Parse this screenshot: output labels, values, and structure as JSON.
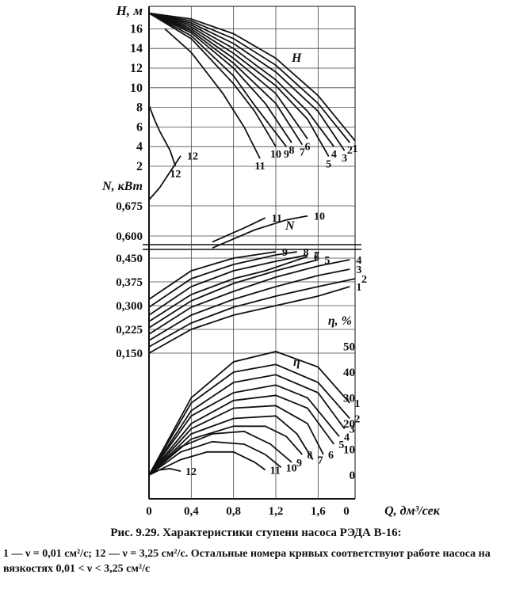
{
  "caption": {
    "title": "Рис. 9.29. Характеристики ступени насоса РЭДА В-16:",
    "note": "1 — ν = 0,01 см²/с; 12 — ν = 3,25 см²/с. Остальные номера кривых соответствуют работе насоса на вязкостях 0,01 < ν < 3,25 см²/с"
  },
  "chart_data": {
    "type": "line",
    "x": {
      "label": "Q, дм³/сек",
      "ticks": [
        "0",
        "0,4",
        "0,8",
        "1,2",
        "1,6"
      ],
      "values": [
        0,
        0.4,
        0.8,
        1.2,
        1.6
      ],
      "range": [
        0,
        1.95
      ],
      "zero_right": "0"
    },
    "head": {
      "axis_label": "H, м",
      "ticks": [
        2,
        4,
        6,
        8,
        10,
        12,
        14,
        16
      ],
      "range": [
        0,
        18
      ],
      "label": "H",
      "series": [
        {
          "name": "1",
          "x": [
            0,
            0.4,
            0.8,
            1.2,
            1.6,
            1.95
          ],
          "y": [
            17.6,
            17.0,
            15.5,
            13.0,
            9.2,
            4.6
          ]
        },
        {
          "name": "2",
          "x": [
            0,
            0.4,
            0.8,
            1.2,
            1.6,
            1.9
          ],
          "y": [
            17.6,
            16.8,
            15.0,
            12.3,
            8.4,
            4.4
          ]
        },
        {
          "name": "3",
          "x": [
            0,
            0.4,
            0.8,
            1.2,
            1.6,
            1.85
          ],
          "y": [
            17.6,
            16.6,
            14.5,
            11.6,
            7.6,
            3.6
          ]
        },
        {
          "name": "4",
          "x": [
            0,
            0.4,
            0.8,
            1.2,
            1.5,
            1.75
          ],
          "y": [
            17.6,
            16.4,
            14.0,
            10.8,
            7.6,
            4.0
          ]
        },
        {
          "name": "5",
          "x": [
            0,
            0.4,
            0.8,
            1.2,
            1.5,
            1.7
          ],
          "y": [
            17.6,
            16.2,
            13.5,
            10.2,
            6.8,
            3.0
          ]
        },
        {
          "name": "6",
          "x": [
            0,
            0.4,
            0.8,
            1.2,
            1.5
          ],
          "y": [
            17.6,
            16.0,
            13.0,
            9.4,
            4.8
          ]
        },
        {
          "name": "7",
          "x": [
            0,
            0.4,
            0.8,
            1.2,
            1.45
          ],
          "y": [
            17.6,
            15.8,
            12.5,
            8.4,
            4.2
          ]
        },
        {
          "name": "8",
          "x": [
            0,
            0.4,
            0.8,
            1.1,
            1.35
          ],
          "y": [
            17.6,
            15.6,
            12.0,
            8.4,
            4.4
          ]
        },
        {
          "name": "9",
          "x": [
            0,
            0.4,
            0.8,
            1.0,
            1.3
          ],
          "y": [
            17.6,
            15.3,
            11.2,
            8.2,
            4.0
          ]
        },
        {
          "name": "10",
          "x": [
            0,
            0.4,
            0.8,
            1.0,
            1.2
          ],
          "y": [
            17.6,
            15.0,
            10.4,
            7.6,
            4.0
          ]
        },
        {
          "name": "11",
          "x": [
            0.15,
            0.4,
            0.7,
            0.9,
            1.05
          ],
          "y": [
            16.0,
            13.6,
            9.4,
            6.0,
            2.8
          ]
        },
        {
          "name": "12",
          "x": [
            0,
            0.05,
            0.1,
            0.15,
            0.2,
            0.25
          ],
          "y": [
            8.2,
            6.8,
            5.6,
            4.6,
            3.6,
            2.0
          ]
        }
      ]
    },
    "power": {
      "axis_label": "N, кВт",
      "upper_ticks": [
        "0,675",
        "0,600"
      ],
      "upper_values": [
        0.675,
        0.6
      ],
      "lower_ticks": [
        "0,450",
        "0,375",
        "0,300",
        "0,225",
        "0,150"
      ],
      "lower_values": [
        0.45,
        0.375,
        0.3,
        0.225,
        0.15
      ],
      "label": "N",
      "series": [
        {
          "name": "1",
          "x": [
            0,
            0.4,
            0.8,
            1.2,
            1.6,
            1.9
          ],
          "y": [
            0.15,
            0.225,
            0.27,
            0.3,
            0.33,
            0.36
          ]
        },
        {
          "name": "2",
          "x": [
            0,
            0.4,
            0.8,
            1.2,
            1.6,
            1.95
          ],
          "y": [
            0.17,
            0.245,
            0.295,
            0.33,
            0.36,
            0.385
          ]
        },
        {
          "name": "3",
          "x": [
            0,
            0.4,
            0.8,
            1.2,
            1.6,
            1.9
          ],
          "y": [
            0.19,
            0.27,
            0.32,
            0.36,
            0.395,
            0.415
          ]
        },
        {
          "name": "4",
          "x": [
            0,
            0.4,
            0.8,
            1.2,
            1.6,
            1.9
          ],
          "y": [
            0.21,
            0.295,
            0.345,
            0.39,
            0.425,
            0.445
          ]
        },
        {
          "name": "5",
          "x": [
            0,
            0.4,
            0.8,
            1.2,
            1.6
          ],
          "y": [
            0.23,
            0.315,
            0.37,
            0.41,
            0.445
          ]
        },
        {
          "name": "6",
          "x": [
            0,
            0.4,
            0.8,
            1.1,
            1.5
          ],
          "y": [
            0.25,
            0.335,
            0.385,
            0.41,
            0.455
          ]
        },
        {
          "name": "7",
          "x": [
            0,
            0.4,
            0.8,
            1.2,
            1.5
          ],
          "y": [
            0.27,
            0.36,
            0.41,
            0.44,
            0.46
          ]
        },
        {
          "name": "8",
          "x": [
            0,
            0.4,
            0.8,
            1.2,
            1.4
          ],
          "y": [
            0.295,
            0.385,
            0.43,
            0.46,
            0.47
          ]
        },
        {
          "name": "9",
          "x": [
            0,
            0.4,
            0.8,
            1.2
          ],
          "y": [
            0.32,
            0.41,
            0.45,
            0.47
          ]
        },
        {
          "name": "10",
          "x": [
            0.6,
            1.0,
            1.3,
            1.5
          ],
          "y": [
            0.57,
            0.615,
            0.64,
            0.65
          ]
        },
        {
          "name": "11",
          "x": [
            0.6,
            0.9,
            1.1
          ],
          "y": [
            0.585,
            0.62,
            0.645
          ]
        },
        {
          "name": "12",
          "x": [
            0,
            0.1,
            0.2,
            0.3
          ],
          "y": [
            0.69,
            0.72,
            0.76,
            0.8
          ]
        }
      ]
    },
    "efficiency": {
      "axis_label": "η, %",
      "ticks": [
        0,
        10,
        20,
        30,
        40,
        50
      ],
      "range": [
        0,
        55
      ],
      "label": "η",
      "series": [
        {
          "name": "1",
          "x": [
            0,
            0.4,
            0.8,
            1.2,
            1.6,
            1.9
          ],
          "y": [
            0,
            30,
            44,
            48,
            42,
            28
          ]
        },
        {
          "name": "2",
          "x": [
            0,
            0.4,
            0.8,
            1.2,
            1.6,
            1.9
          ],
          "y": [
            0,
            28,
            40,
            43,
            36,
            22
          ]
        },
        {
          "name": "3",
          "x": [
            0,
            0.4,
            0.8,
            1.2,
            1.6,
            1.85
          ],
          "y": [
            0,
            25,
            36,
            39,
            32,
            18
          ]
        },
        {
          "name": "4",
          "x": [
            0,
            0.4,
            0.8,
            1.2,
            1.5,
            1.8
          ],
          "y": [
            0,
            23,
            32,
            35,
            30,
            15
          ]
        },
        {
          "name": "5",
          "x": [
            0,
            0.4,
            0.8,
            1.2,
            1.5,
            1.75
          ],
          "y": [
            0,
            20,
            29,
            31,
            26,
            12
          ]
        },
        {
          "name": "6",
          "x": [
            0,
            0.4,
            0.8,
            1.2,
            1.5,
            1.65
          ],
          "y": [
            0,
            18,
            26,
            27,
            20,
            8
          ]
        },
        {
          "name": "7",
          "x": [
            0,
            0.4,
            0.8,
            1.2,
            1.4,
            1.55
          ],
          "y": [
            0,
            16,
            22,
            23,
            16,
            6
          ]
        },
        {
          "name": "8",
          "x": [
            0,
            0.4,
            0.8,
            1.1,
            1.3,
            1.45
          ],
          "y": [
            0,
            14,
            19,
            19,
            15,
            8
          ]
        },
        {
          "name": "9",
          "x": [
            0,
            0.3,
            0.6,
            0.9,
            1.15,
            1.35
          ],
          "y": [
            0,
            11,
            16,
            17,
            12,
            5
          ]
        },
        {
          "name": "10",
          "x": [
            0,
            0.3,
            0.6,
            0.9,
            1.1,
            1.25
          ],
          "y": [
            0,
            9,
            13,
            12,
            8,
            3
          ]
        },
        {
          "name": "11",
          "x": [
            0,
            0.3,
            0.55,
            0.8,
            1.0,
            1.1
          ],
          "y": [
            0,
            6,
            9,
            9,
            5,
            2
          ]
        },
        {
          "name": "12",
          "x": [
            0,
            0.1,
            0.2,
            0.3
          ],
          "y": [
            0,
            2,
            2.5,
            1.5
          ]
        }
      ]
    }
  }
}
